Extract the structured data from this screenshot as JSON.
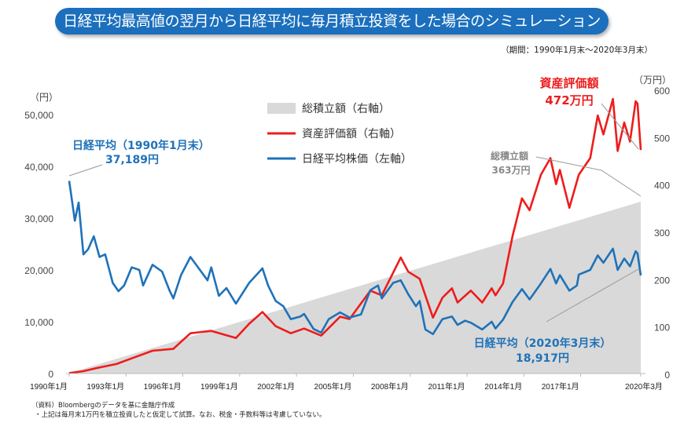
{
  "title": "日経平均最高値の翌月から日経平均に毎月積立投資をした場合のシミュレーション",
  "period": "（期間：1990年1月末～2020年3月末）",
  "notes": [
    "（資料）Bloombergのデータを基に金融庁作成",
    "・上記は毎月末1万円を積立投資したと仮定して試算。なお、税金・手数料等は考慮していない。"
  ],
  "colors": {
    "title_bg": "#1b6fbd",
    "nikkei": "#1f72b8",
    "asset": "#ee1c1c",
    "contribution": "#d9d9d9"
  },
  "chart_data": {
    "type": "line",
    "left_axis": {
      "unit": "（円）",
      "range": [
        0,
        50000
      ],
      "ticks": [
        "0",
        "10,000",
        "20,000",
        "30,000",
        "40,000",
        "50,000"
      ]
    },
    "right_axis": {
      "unit": "（万円）",
      "range": [
        0,
        600
      ],
      "ticks": [
        "0",
        "100",
        "200",
        "300",
        "400",
        "500",
        "600"
      ]
    },
    "x_ticks": [
      "1990年1月",
      "1993年1月",
      "1996年1月",
      "1999年1月",
      "2002年1月",
      "2005年1月",
      "2008年1月",
      "2011年1月",
      "2014年1月",
      "2017年1月",
      "2020年3月"
    ],
    "x_range": [
      1990.0,
      2020.17
    ],
    "legend": [
      "総積立額（右軸）",
      "資産評価額（右軸）",
      "日経平均株価（左軸）"
    ],
    "series": [
      {
        "name": "総積立額（右軸）",
        "type": "area",
        "axis": "right",
        "x": [
          1990.0,
          2020.17
        ],
        "y": [
          1,
          363
        ]
      },
      {
        "name": "資産評価額（右軸）",
        "type": "line",
        "axis": "right",
        "x": [
          1990.0,
          1990.75,
          1991.5,
          1992.5,
          1993.3,
          1994.4,
          1995.5,
          1996.4,
          1997.5,
          1998.8,
          1999.5,
          2000.2,
          2000.9,
          2001.7,
          2002.4,
          2003.3,
          2004.3,
          2004.8,
          2005.9,
          2006.5,
          2007.5,
          2007.9,
          2008.5,
          2009.2,
          2009.7,
          2010.2,
          2010.5,
          2011.2,
          2011.8,
          2012.3,
          2012.5,
          2012.9,
          2013.4,
          2013.9,
          2014.3,
          2014.9,
          2015.4,
          2015.7,
          2015.9,
          2016.4,
          2016.9,
          2017.5,
          2017.9,
          2018.2,
          2018.7,
          2018.95,
          2019.3,
          2019.6,
          2019.9,
          2020.0,
          2020.17
        ],
        "y": [
          1,
          5,
          12,
          20,
          32,
          48,
          52,
          85,
          90,
          75,
          105,
          130,
          100,
          85,
          95,
          80,
          120,
          115,
          175,
          165,
          245,
          215,
          200,
          118,
          160,
          180,
          150,
          175,
          150,
          180,
          165,
          190,
          290,
          370,
          345,
          420,
          455,
          400,
          430,
          350,
          420,
          455,
          545,
          505,
          580,
          470,
          530,
          490,
          575,
          570,
          472
        ]
      },
      {
        "name": "日経平均株価（左軸）",
        "type": "line",
        "axis": "left",
        "x": [
          1990.0,
          1990.3,
          1990.5,
          1990.75,
          1991.0,
          1991.3,
          1991.6,
          1991.9,
          1992.3,
          1992.6,
          1992.9,
          1993.3,
          1993.7,
          1993.9,
          1994.4,
          1994.9,
          1995.3,
          1995.5,
          1995.9,
          1996.4,
          1996.9,
          1997.3,
          1997.5,
          1997.9,
          1998.3,
          1998.8,
          1999.5,
          2000.2,
          2000.5,
          2000.9,
          2001.3,
          2001.7,
          2002.2,
          2002.4,
          2002.9,
          2003.3,
          2003.7,
          2004.3,
          2004.8,
          2005.4,
          2005.9,
          2006.3,
          2006.5,
          2007.1,
          2007.5,
          2007.9,
          2008.3,
          2008.5,
          2008.8,
          2009.2,
          2009.7,
          2010.2,
          2010.5,
          2010.9,
          2011.2,
          2011.8,
          2012.3,
          2012.5,
          2012.9,
          2013.4,
          2013.9,
          2014.3,
          2014.9,
          2015.4,
          2015.7,
          2015.9,
          2016.4,
          2016.8,
          2016.9,
          2017.5,
          2017.9,
          2018.2,
          2018.7,
          2018.95,
          2019.3,
          2019.6,
          2019.9,
          2020.0,
          2020.17
        ],
        "y": [
          37189,
          29500,
          33000,
          23000,
          24000,
          26500,
          22500,
          23000,
          17500,
          15900,
          17000,
          20500,
          20000,
          17000,
          21000,
          19700,
          16000,
          14500,
          19000,
          22500,
          20000,
          18000,
          20500,
          15000,
          16500,
          13500,
          17500,
          20300,
          17000,
          14000,
          13000,
          10500,
          11000,
          11500,
          8600,
          7900,
          10500,
          11800,
          10800,
          11400,
          16100,
          17000,
          14500,
          17500,
          18000,
          15300,
          13000,
          14000,
          8500,
          7600,
          10500,
          11000,
          9400,
          10200,
          9800,
          8500,
          10000,
          8700,
          10400,
          13800,
          16300,
          14300,
          17400,
          20200,
          17400,
          19000,
          16000,
          17000,
          19100,
          20000,
          22800,
          21400,
          24100,
          20000,
          22200,
          20700,
          23600,
          23200,
          18917
        ]
      }
    ],
    "annotations": {
      "nikkei_start": {
        "label": "日経平均（1990年1月末）",
        "value": "37,189円"
      },
      "asset_end": {
        "label": "資産評価額",
        "value": "472万円"
      },
      "contribution_end": {
        "label": "総積立額",
        "value": "363万円"
      },
      "nikkei_end": {
        "label": "日経平均（2020年3月末）",
        "value": "18,917円"
      }
    }
  }
}
